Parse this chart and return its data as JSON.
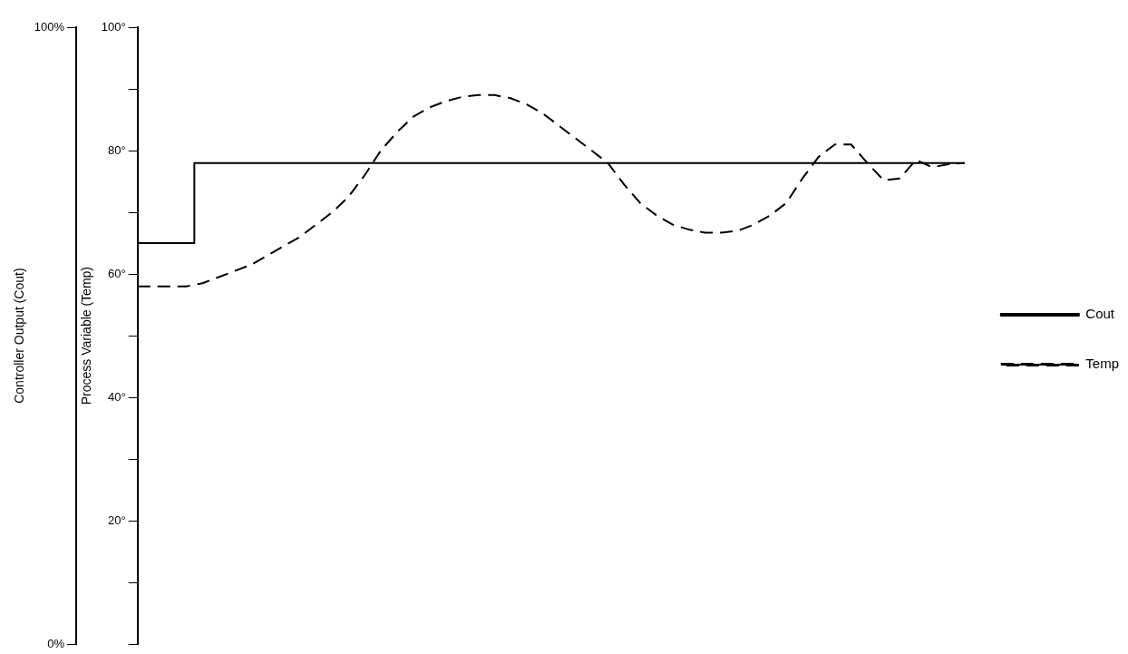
{
  "chart_data": {
    "type": "line",
    "ylabel": "Process Variable (Temp)",
    "y2label": "Controller Output (Cout)",
    "categories": [
      null,
      null,
      null,
      null,
      null,
      null,
      null,
      null,
      null,
      null,
      null,
      null,
      null,
      null,
      null,
      null,
      null,
      null,
      null,
      null,
      null,
      null,
      null,
      null,
      null,
      null,
      null,
      null,
      null,
      null,
      null,
      null,
      null,
      null,
      null,
      null,
      null,
      null,
      null,
      null,
      null,
      null,
      null,
      null,
      null,
      null,
      null,
      null,
      null,
      null,
      null,
      null
    ],
    "series": [
      {
        "name": "Cout",
        "type": "step",
        "color": "#000000",
        "line_style": "solid",
        "values": [
          65,
          65,
          65,
          65,
          78,
          78,
          78,
          78,
          78,
          78,
          78,
          78,
          78,
          78,
          78,
          78,
          78,
          78,
          78,
          78,
          78,
          78,
          78,
          78,
          78,
          78,
          78,
          78,
          78,
          78,
          78,
          78,
          78,
          78,
          78,
          78,
          78,
          78,
          78,
          78,
          78,
          78,
          78,
          78,
          78,
          78,
          78,
          78,
          78,
          78,
          78,
          78
        ]
      },
      {
        "name": "Temp",
        "color": "#000000",
        "line_style": "dashed",
        "values": [
          58,
          58,
          58,
          58,
          58.5,
          59.5,
          60.5,
          61.5,
          63,
          64.5,
          66,
          68,
          70,
          72.5,
          76,
          80,
          83,
          85.5,
          87,
          88,
          88.7,
          89,
          89,
          88.5,
          87.5,
          86,
          84,
          82,
          80,
          78,
          74.5,
          71.5,
          69.5,
          68,
          67.2,
          66.7,
          66.7,
          67,
          68,
          69.5,
          71.5,
          75.5,
          79,
          81,
          81,
          78,
          75.2,
          75.5,
          78.5,
          77.3,
          77.8,
          78
        ]
      }
    ],
    "ylim": [
      0,
      100
    ],
    "yticks": [
      {
        "value": 0,
        "label": null
      },
      {
        "value": 10,
        "label": null
      },
      {
        "value": 20,
        "label": "20°"
      },
      {
        "value": 30,
        "label": null
      },
      {
        "value": 40,
        "label": "40°"
      },
      {
        "value": 50,
        "label": null
      },
      {
        "value": 60,
        "label": "60°"
      },
      {
        "value": 70,
        "label": null
      },
      {
        "value": 80,
        "label": "80°"
      },
      {
        "value": 90,
        "label": null
      },
      {
        "value": 100,
        "label": "100°"
      }
    ],
    "y2lim": [
      0,
      100
    ],
    "y2ticks": [
      {
        "value": 0,
        "label": "0%"
      },
      {
        "value": 100,
        "label": "100%"
      }
    ],
    "tick_labels": "y",
    "grid": false,
    "legend": "right"
  }
}
